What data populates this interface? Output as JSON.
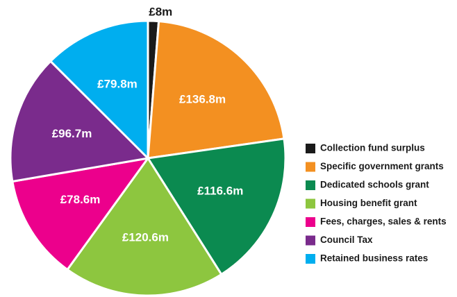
{
  "chart_data": {
    "type": "pie",
    "categories": [
      "Collection fund surplus",
      "Specific government grants",
      "Dedicated schools grant",
      "Housing benefit grant",
      "Fees, charges, sales & rents",
      "Council Tax",
      "Retained business rates"
    ],
    "values": [
      8,
      136.8,
      116.6,
      120.6,
      78.6,
      96.7,
      79.8
    ],
    "value_labels": [
      "£8m",
      "£136.8m",
      "£116.6m",
      "£120.6m",
      "£78.6m",
      "£96.7m",
      "£79.8m"
    ],
    "colors": [
      "#1a1a1a",
      "#f39021",
      "#0b8a50",
      "#8dc63f",
      "#ec008c",
      "#7a2b8c",
      "#00aeef"
    ],
    "legend": "right"
  }
}
